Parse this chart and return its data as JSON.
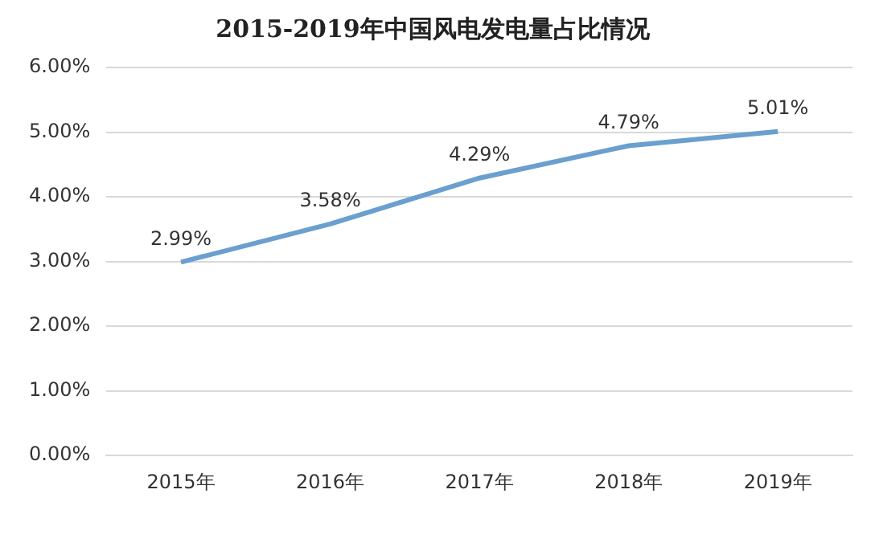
{
  "chart_data": {
    "type": "line",
    "title": "2015-2019年中国风电发电量占比情况",
    "categories": [
      "2015年",
      "2016年",
      "2017年",
      "2018年",
      "2019年"
    ],
    "series": [
      {
        "color": "#6a9fcf",
        "values": [
          2.99,
          3.58,
          4.29,
          4.79,
          5.01
        ],
        "value_labels": [
          "2.99%",
          "3.58%",
          "4.29%",
          "4.79%",
          "5.01%"
        ]
      }
    ],
    "ylim": [
      0,
      6
    ],
    "yticks": [
      {
        "value": 0,
        "label": "0.00%"
      },
      {
        "value": 1,
        "label": "1.00%"
      },
      {
        "value": 2,
        "label": "2.00%"
      },
      {
        "value": 3,
        "label": "3.00%"
      },
      {
        "value": 4,
        "label": "4.00%"
      },
      {
        "value": 5,
        "label": "5.00%"
      },
      {
        "value": 6,
        "label": "6.00%"
      }
    ],
    "grid": "y",
    "legend": false,
    "marker": "none",
    "line_style": "solid"
  }
}
